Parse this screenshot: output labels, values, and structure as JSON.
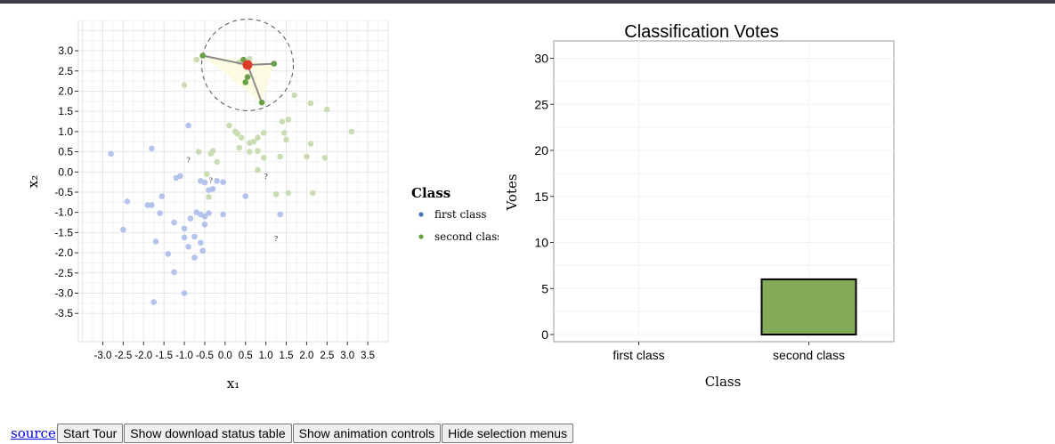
{
  "chart_data": [
    {
      "type": "scatter",
      "title": "",
      "xlabel": "x₁",
      "ylabel": "x₂",
      "xlim": [
        -3.6,
        4.0
      ],
      "ylim": [
        -4.2,
        3.75
      ],
      "xticks": [
        "-3.0",
        "-2.5",
        "-2.0",
        "-1.5",
        "-1.0",
        "-0.5",
        "0.0",
        "0.5",
        "1.0",
        "1.5",
        "2.0",
        "2.5",
        "3.0",
        "3.5"
      ],
      "yticks": [
        "3.0",
        "2.5",
        "2.0",
        "1.5",
        "1.0",
        "0.5",
        "0.0",
        "-0.5",
        "-1.0",
        "-1.5",
        "-2.0",
        "-2.5",
        "-3.0",
        "-3.5"
      ],
      "legend": {
        "title": "Class",
        "position": "right",
        "items": [
          {
            "label": "first class",
            "color": "#4a6fc0"
          },
          {
            "label": "second class",
            "color": "#6a9e3f"
          }
        ]
      },
      "series": [
        {
          "name": "first class",
          "color": "#b4c3ec",
          "points": [
            [
              -2.8,
              0.45
            ],
            [
              -1.8,
              0.58
            ],
            [
              -0.9,
              1.15
            ],
            [
              -2.4,
              -0.73
            ],
            [
              -1.9,
              -0.82
            ],
            [
              -1.8,
              -0.82
            ],
            [
              -1.6,
              -1.02
            ],
            [
              -1.55,
              -0.6
            ],
            [
              -1.2,
              -0.15
            ],
            [
              -1.1,
              -0.1
            ],
            [
              -0.6,
              -0.22
            ],
            [
              -0.5,
              -0.26
            ],
            [
              -0.4,
              -0.45
            ],
            [
              -0.3,
              -0.42
            ],
            [
              -0.2,
              -0.22
            ],
            [
              -0.05,
              -0.25
            ],
            [
              -0.05,
              -1.05
            ],
            [
              0.5,
              -0.6
            ],
            [
              -0.4,
              -1.02
            ],
            [
              -0.5,
              -1.1
            ],
            [
              -0.6,
              -1.05
            ],
            [
              -0.7,
              -1.0
            ],
            [
              -0.85,
              -1.15
            ],
            [
              -1.0,
              -1.4
            ],
            [
              -1.25,
              -1.25
            ],
            [
              -1.0,
              -1.62
            ],
            [
              -0.75,
              -1.6
            ],
            [
              -0.6,
              -1.75
            ],
            [
              -0.55,
              -1.95
            ],
            [
              -0.75,
              -2.12
            ],
            [
              -0.9,
              -1.85
            ],
            [
              -1.7,
              -1.72
            ],
            [
              -1.4,
              -2.03
            ],
            [
              -1.25,
              -2.48
            ],
            [
              -2.5,
              -1.43
            ],
            [
              -1.0,
              -3.0
            ],
            [
              -1.75,
              -3.22
            ],
            [
              1.35,
              -1.05
            ],
            [
              -0.5,
              -1.3
            ]
          ]
        },
        {
          "name": "second class",
          "color": "#c9dcb4",
          "points": [
            [
              -1.0,
              2.15
            ],
            [
              -0.7,
              2.78
            ],
            [
              0.35,
              2.72
            ],
            [
              0.6,
              2.8
            ],
            [
              1.7,
              1.9
            ],
            [
              2.1,
              1.7
            ],
            [
              2.5,
              1.55
            ],
            [
              3.1,
              1.0
            ],
            [
              1.4,
              1.25
            ],
            [
              1.55,
              1.3
            ],
            [
              1.45,
              0.97
            ],
            [
              1.5,
              0.8
            ],
            [
              2.1,
              0.7
            ],
            [
              2.0,
              0.38
            ],
            [
              2.45,
              0.35
            ],
            [
              0.95,
              0.97
            ],
            [
              0.8,
              0.85
            ],
            [
              0.7,
              0.75
            ],
            [
              0.6,
              0.72
            ],
            [
              0.4,
              0.85
            ],
            [
              0.3,
              0.95
            ],
            [
              0.25,
              1.0
            ],
            [
              0.1,
              1.15
            ],
            [
              0.35,
              0.6
            ],
            [
              0.6,
              0.5
            ],
            [
              0.8,
              0.52
            ],
            [
              0.95,
              0.35
            ],
            [
              1.35,
              0.38
            ],
            [
              -0.3,
              0.52
            ],
            [
              -0.35,
              0.45
            ],
            [
              -0.65,
              0.5
            ],
            [
              -0.2,
              0.25
            ],
            [
              0.8,
              0.05
            ],
            [
              -0.45,
              -0.05
            ],
            [
              1.55,
              -0.52
            ],
            [
              2.15,
              -0.52
            ],
            [
              1.25,
              -0.55
            ],
            [
              -0.4,
              -0.62
            ]
          ]
        }
      ],
      "unknown_points": [
        [
          -0.9,
          0.3
        ],
        [
          -0.35,
          -0.2
        ],
        [
          1.0,
          -0.1
        ],
        [
          1.25,
          -1.65
        ]
      ],
      "query_point": {
        "x": 0.55,
        "y": 2.65,
        "color": "#e03a2a"
      },
      "neighbors": [
        [
          -0.55,
          2.88
        ],
        [
          1.2,
          2.68
        ],
        [
          0.9,
          1.72
        ],
        [
          0.55,
          2.35
        ],
        [
          0.5,
          2.22
        ],
        [
          0.45,
          2.78
        ]
      ],
      "circle_radius": 1.0
    },
    {
      "type": "bar",
      "title": "Classification Votes",
      "xlabel": "Class",
      "ylabel": "Votes",
      "ylim": [
        0,
        31.5
      ],
      "yticks": [
        "0",
        "5",
        "10",
        "15",
        "20",
        "25",
        "30"
      ],
      "categories": [
        "first class",
        "second class"
      ],
      "values": [
        0,
        6
      ],
      "bar_color": "#83aa58",
      "grid": true
    }
  ],
  "controls": {
    "source_label": "source",
    "start_tour": "Start Tour",
    "show_download": "Show download status table",
    "show_animation": "Show animation controls",
    "hide_selection": "Hide selection menus"
  }
}
